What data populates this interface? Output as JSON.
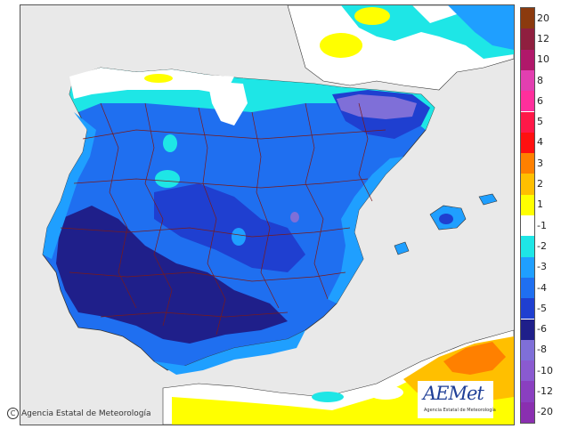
{
  "copyright": {
    "symbol": "C",
    "text": "Agencia Estatal de Meteorología"
  },
  "logo": {
    "name": "AEMet",
    "subtitle": "Agencia Estatal de Meteorología"
  },
  "legend": {
    "entries": [
      {
        "label": "20",
        "color": "#8b3a0e"
      },
      {
        "label": "12",
        "color": "#8f1f3f"
      },
      {
        "label": "10",
        "color": "#b0186a"
      },
      {
        "label": "8",
        "color": "#e23fb0"
      },
      {
        "label": "6",
        "color": "#ff2f9c"
      },
      {
        "label": "5",
        "color": "#ff1848"
      },
      {
        "label": "4",
        "color": "#ff1010"
      },
      {
        "label": "3",
        "color": "#ff8000"
      },
      {
        "label": "2",
        "color": "#ffbf00"
      },
      {
        "label": "1",
        "color": "#ffff00"
      },
      {
        "label": "-1",
        "color": "#ffffff"
      },
      {
        "label": "-2",
        "color": "#1ee6e6"
      },
      {
        "label": "-3",
        "color": "#1f9fff"
      },
      {
        "label": "-4",
        "color": "#1f6ff0"
      },
      {
        "label": "-5",
        "color": "#1f3fd0"
      },
      {
        "label": "-6",
        "color": "#1f1f8a"
      },
      {
        "label": "-8",
        "color": "#7f6fd8"
      },
      {
        "label": "-10",
        "color": "#8a5ad0"
      },
      {
        "label": "-12",
        "color": "#8a3fc0"
      },
      {
        "label": "-20",
        "color": "#8a2fb0"
      }
    ]
  },
  "colors": {
    "sea": "#e9e9e9",
    "land_outline": "#7a1a1a",
    "coast": "#333333"
  }
}
